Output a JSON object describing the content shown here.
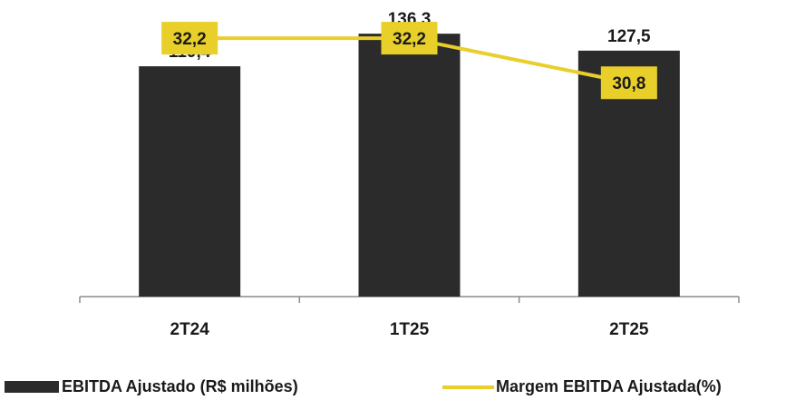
{
  "chart_data": {
    "type": "bar",
    "categories": [
      "2T24",
      "1T25",
      "2T25"
    ],
    "series": [
      {
        "name": "EBITDA Ajustado (R$ milhões)",
        "type": "bar",
        "axis": "left",
        "values": [
          119.4,
          136.3,
          127.5
        ],
        "labels": [
          "119,4",
          "136,3",
          "127,5"
        ],
        "color": "#2b2b2b"
      },
      {
        "name": "Margem EBITDA Ajustada(%)",
        "type": "line",
        "axis": "right",
        "values": [
          32.2,
          32.2,
          30.8
        ],
        "labels": [
          "32,2",
          "32,2",
          "30,8"
        ],
        "color": "#e8cf2a"
      }
    ],
    "title": "",
    "xlabel": "",
    "ylabel": "",
    "ylim": [
      0,
      150
    ],
    "y2lim": [
      24,
      33
    ],
    "grid": false,
    "legend": "bottom"
  }
}
